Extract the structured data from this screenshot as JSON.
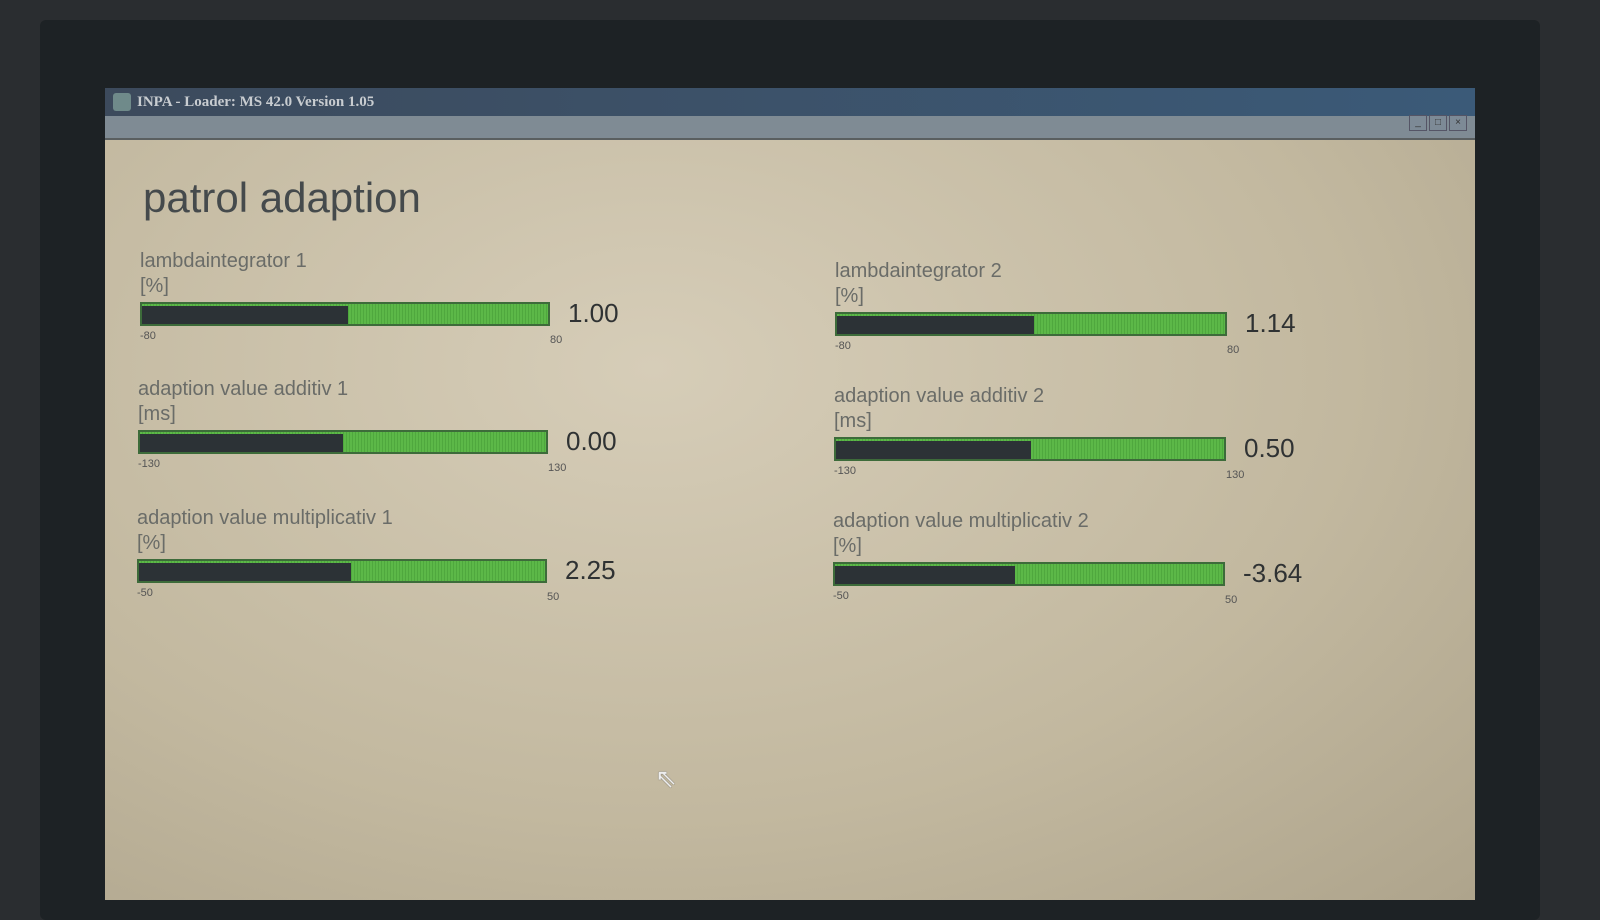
{
  "window": {
    "title": "INPA - Loader:  MS 42.0 Version 1.05"
  },
  "page": {
    "title": "patrol adaption"
  },
  "gauges": [
    {
      "label": "lambdaintegrator 1",
      "unit": "[%]",
      "value": 1.0,
      "value_text": "1.00",
      "min": "-80",
      "max": "80",
      "min_value": -80,
      "max_value": 80
    },
    {
      "label": "lambdaintegrator 2",
      "unit": "[%]",
      "value": 1.14,
      "value_text": "1.14",
      "min": "-80",
      "max": "80",
      "min_value": -80,
      "max_value": 80
    },
    {
      "label": "adaption value additiv 1",
      "unit": "[ms]",
      "value": 0.0,
      "value_text": "0.00",
      "min": "-130",
      "max": "130",
      "min_value": -130,
      "max_value": 130
    },
    {
      "label": "adaption value additiv 2",
      "unit": "[ms]",
      "value": 0.5,
      "value_text": "0.50",
      "min": "-130",
      "max": "130",
      "min_value": -130,
      "max_value": 130
    },
    {
      "label": "adaption value multiplicativ 1",
      "unit": "[%]",
      "value": 2.25,
      "value_text": "2.25",
      "min": "-50",
      "max": "50",
      "min_value": -50,
      "max_value": 50
    },
    {
      "label": "adaption value multiplicativ 2",
      "unit": "[%]",
      "value": -3.64,
      "value_text": "-3.64",
      "min": "-50",
      "max": "50",
      "min_value": -50,
      "max_value": 50
    }
  ],
  "colors": {
    "bar_green": "#5cb848",
    "bar_fill_dark": "#2c3236"
  }
}
